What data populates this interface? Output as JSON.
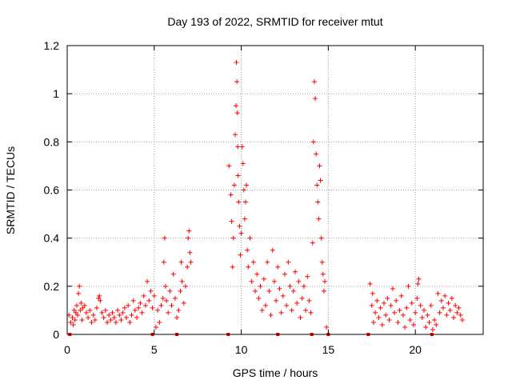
{
  "chart_data": {
    "type": "scatter",
    "title": "Day 193 of 2022, SRMTID for receiver mtut",
    "xlabel": "GPS time / hours",
    "ylabel": "SRMTID / TECUs",
    "xlim": [
      0,
      23.9
    ],
    "ylim": [
      0,
      1.2
    ],
    "xticks": [
      "0",
      "5",
      "10",
      "15",
      "20"
    ],
    "xtick_values": [
      0,
      5,
      10,
      15,
      20
    ],
    "yticks": [
      "0",
      "0.2",
      "0.4",
      "0.6",
      "0.8",
      "1",
      "1.2"
    ],
    "ytick_values": [
      0,
      0.2,
      0.4,
      0.6,
      0.8,
      1.0,
      1.2
    ],
    "grid": true,
    "marker": "+",
    "marker_color": "#ff0000",
    "axis_color": "#000000",
    "grid_color": "#a0a0a0",
    "series": [
      {
        "name": "SRMTID",
        "points": [
          [
            0.1,
            0.08
          ],
          [
            0.2,
            0.05
          ],
          [
            0.3,
            0.07
          ],
          [
            0.35,
            0.04
          ],
          [
            0.4,
            0.1
          ],
          [
            0.45,
            0.06
          ],
          [
            0.5,
            0.09
          ],
          [
            0.55,
            0.12
          ],
          [
            0.6,
            0.08
          ],
          [
            0.65,
            0.17
          ],
          [
            0.7,
            0.2
          ],
          [
            0.75,
            0.1
          ],
          [
            0.8,
            0.13
          ],
          [
            0.85,
            0.06
          ],
          [
            0.9,
            0.11
          ],
          [
            1.0,
            0.12
          ],
          [
            1.1,
            0.09
          ],
          [
            1.2,
            0.07
          ],
          [
            1.3,
            0.1
          ],
          [
            1.4,
            0.05
          ],
          [
            1.5,
            0.08
          ],
          [
            1.6,
            0.06
          ],
          [
            1.7,
            0.11
          ],
          [
            1.8,
            0.15
          ],
          [
            1.85,
            0.16
          ],
          [
            1.9,
            0.14
          ],
          [
            2.0,
            0.09
          ],
          [
            2.1,
            0.07
          ],
          [
            2.2,
            0.1
          ],
          [
            2.3,
            0.05
          ],
          [
            2.4,
            0.08
          ],
          [
            2.5,
            0.06
          ],
          [
            2.6,
            0.09
          ],
          [
            2.7,
            0.07
          ],
          [
            2.8,
            0.05
          ],
          [
            2.9,
            0.1
          ],
          [
            3.0,
            0.08
          ],
          [
            3.1,
            0.06
          ],
          [
            3.2,
            0.09
          ],
          [
            3.3,
            0.11
          ],
          [
            3.4,
            0.07
          ],
          [
            3.5,
            0.12
          ],
          [
            3.6,
            0.05
          ],
          [
            3.7,
            0.08
          ],
          [
            3.8,
            0.14
          ],
          [
            3.9,
            0.1
          ],
          [
            4.0,
            0.07
          ],
          [
            4.1,
            0.11
          ],
          [
            4.2,
            0.13
          ],
          [
            4.3,
            0.09
          ],
          [
            4.4,
            0.16
          ],
          [
            4.5,
            0.12
          ],
          [
            4.6,
            0.22
          ],
          [
            4.7,
            0.14
          ],
          [
            4.8,
            0.18
          ],
          [
            4.9,
            0.11
          ],
          [
            5.0,
            0.16
          ],
          [
            5.1,
            0.03
          ],
          [
            5.2,
            0.1
          ],
          [
            5.3,
            0.05
          ],
          [
            5.4,
            0.12
          ],
          [
            5.5,
            0.15
          ],
          [
            5.55,
            0.3
          ],
          [
            5.6,
            0.4
          ],
          [
            5.65,
            0.2
          ],
          [
            5.7,
            0.14
          ],
          [
            5.8,
            0.09
          ],
          [
            5.9,
            0.18
          ],
          [
            6.0,
            0.12
          ],
          [
            6.1,
            0.25
          ],
          [
            6.2,
            0.15
          ],
          [
            6.3,
            0.07
          ],
          [
            6.4,
            0.1
          ],
          [
            6.5,
            0.18
          ],
          [
            6.55,
            0.3
          ],
          [
            6.6,
            0.22
          ],
          [
            6.7,
            0.13
          ],
          [
            6.8,
            0.2
          ],
          [
            6.9,
            0.28
          ],
          [
            6.95,
            0.4
          ],
          [
            7.0,
            0.43
          ],
          [
            7.05,
            0.34
          ],
          [
            7.1,
            0.3
          ],
          [
            9.3,
            0.7
          ],
          [
            9.4,
            0.58
          ],
          [
            9.45,
            0.47
          ],
          [
            9.5,
            0.28
          ],
          [
            9.55,
            0.4
          ],
          [
            9.6,
            0.62
          ],
          [
            9.65,
            0.83
          ],
          [
            9.7,
            0.95
          ],
          [
            9.72,
            1.13
          ],
          [
            9.75,
            1.05
          ],
          [
            9.78,
            0.92
          ],
          [
            9.8,
            0.78
          ],
          [
            9.82,
            0.66
          ],
          [
            9.85,
            0.55
          ],
          [
            9.9,
            0.45
          ],
          [
            9.95,
            0.33
          ],
          [
            10.0,
            0.42
          ],
          [
            10.05,
            0.78
          ],
          [
            10.1,
            0.71
          ],
          [
            10.15,
            0.6
          ],
          [
            10.2,
            0.48
          ],
          [
            10.25,
            0.55
          ],
          [
            10.3,
            0.62
          ],
          [
            10.35,
            0.35
          ],
          [
            10.4,
            0.28
          ],
          [
            10.5,
            0.4
          ],
          [
            10.6,
            0.22
          ],
          [
            10.7,
            0.3
          ],
          [
            10.8,
            0.18
          ],
          [
            10.9,
            0.25
          ],
          [
            11.0,
            0.15
          ],
          [
            11.1,
            0.2
          ],
          [
            11.2,
            0.1
          ],
          [
            11.3,
            0.23
          ],
          [
            11.4,
            0.12
          ],
          [
            11.5,
            0.3
          ],
          [
            11.6,
            0.18
          ],
          [
            11.7,
            0.08
          ],
          [
            11.8,
            0.35
          ],
          [
            11.9,
            0.22
          ],
          [
            12.0,
            0.14
          ],
          [
            12.1,
            0.28
          ],
          [
            12.2,
            0.19
          ],
          [
            12.3,
            0.09
          ],
          [
            12.4,
            0.16
          ],
          [
            12.5,
            0.25
          ],
          [
            12.6,
            0.12
          ],
          [
            12.7,
            0.3
          ],
          [
            12.8,
            0.2
          ],
          [
            12.9,
            0.1
          ],
          [
            13.0,
            0.18
          ],
          [
            13.1,
            0.26
          ],
          [
            13.2,
            0.13
          ],
          [
            13.3,
            0.22
          ],
          [
            13.4,
            0.07
          ],
          [
            13.5,
            0.15
          ],
          [
            13.6,
            0.2
          ],
          [
            13.7,
            0.1
          ],
          [
            13.8,
            0.24
          ],
          [
            13.9,
            0.14
          ],
          [
            14.0,
            0.09
          ],
          [
            14.1,
            0.38
          ],
          [
            14.15,
            0.8
          ],
          [
            14.2,
            1.05
          ],
          [
            14.25,
            0.98
          ],
          [
            14.3,
            0.75
          ],
          [
            14.35,
            0.62
          ],
          [
            14.4,
            0.55
          ],
          [
            14.45,
            0.48
          ],
          [
            14.5,
            0.7
          ],
          [
            14.55,
            0.64
          ],
          [
            14.6,
            0.4
          ],
          [
            14.65,
            0.3
          ],
          [
            14.7,
            0.25
          ],
          [
            14.75,
            0.18
          ],
          [
            14.8,
            0.22
          ],
          [
            14.9,
            0.03
          ],
          [
            17.4,
            0.21
          ],
          [
            17.5,
            0.12
          ],
          [
            17.55,
            0.17
          ],
          [
            17.6,
            0.05
          ],
          [
            17.7,
            0.09
          ],
          [
            17.8,
            0.14
          ],
          [
            17.9,
            0.07
          ],
          [
            18.0,
            0.11
          ],
          [
            18.1,
            0.04
          ],
          [
            18.2,
            0.13
          ],
          [
            18.3,
            0.08
          ],
          [
            18.4,
            0.15
          ],
          [
            18.5,
            0.06
          ],
          [
            18.6,
            0.12
          ],
          [
            18.7,
            0.19
          ],
          [
            18.8,
            0.09
          ],
          [
            18.9,
            0.14
          ],
          [
            19.0,
            0.05
          ],
          [
            19.1,
            0.1
          ],
          [
            19.2,
            0.16
          ],
          [
            19.3,
            0.08
          ],
          [
            19.4,
            0.03
          ],
          [
            19.5,
            0.11
          ],
          [
            19.6,
            0.2
          ],
          [
            19.7,
            0.06
          ],
          [
            19.8,
            0.13
          ],
          [
            19.9,
            0.04
          ],
          [
            20.0,
            0.09
          ],
          [
            20.1,
            0.15
          ],
          [
            20.15,
            0.21
          ],
          [
            20.2,
            0.23
          ],
          [
            20.3,
            0.12
          ],
          [
            20.4,
            0.07
          ],
          [
            20.5,
            0.1
          ],
          [
            20.6,
            0.03
          ],
          [
            20.7,
            0.08
          ],
          [
            20.8,
            0.05
          ],
          [
            20.9,
            0.12
          ],
          [
            21.0,
            0.02
          ],
          [
            21.1,
            0.06
          ],
          [
            21.2,
            0.04
          ],
          [
            21.3,
            0.17
          ],
          [
            21.4,
            0.09
          ],
          [
            21.5,
            0.14
          ],
          [
            21.6,
            0.11
          ],
          [
            21.7,
            0.16
          ],
          [
            21.8,
            0.08
          ],
          [
            21.9,
            0.13
          ],
          [
            22.0,
            0.1
          ],
          [
            22.1,
            0.15
          ],
          [
            22.2,
            0.07
          ],
          [
            22.3,
            0.12
          ],
          [
            22.4,
            0.09
          ],
          [
            22.5,
            0.11
          ],
          [
            22.6,
            0.08
          ],
          [
            22.7,
            0.06
          ]
        ]
      }
    ],
    "zero_markers": [
      0.15,
      4.9,
      6.3,
      9.25,
      12.1,
      14.05,
      15.0,
      17.3,
      20.95
    ]
  }
}
